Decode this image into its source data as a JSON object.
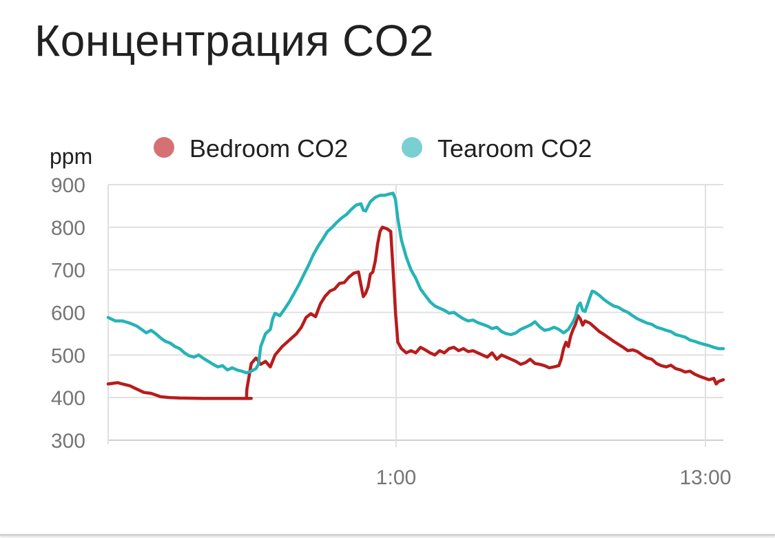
{
  "card": {
    "title": "Концентрация CO2"
  },
  "chart_data": {
    "type": "line",
    "ylabel": "ppm",
    "ylim": [
      300,
      900
    ],
    "yticks": [
      900,
      800,
      700,
      600,
      500,
      400,
      300
    ],
    "xlim": [
      0,
      24.7
    ],
    "xtick_labels": [
      {
        "x": 11.5,
        "label": "1:00"
      },
      {
        "x": 24.0,
        "label": "13:00"
      }
    ],
    "grid": true,
    "legend_position": "top",
    "series": [
      {
        "name": "Bedroom CO2",
        "color": "#b71c1c",
        "legend_color": "#d67173",
        "points": [
          [
            0,
            432
          ],
          [
            0.4,
            435
          ],
          [
            0.6,
            432
          ],
          [
            0.9,
            428
          ],
          [
            1.2,
            420
          ],
          [
            1.5,
            412
          ],
          [
            1.8,
            410
          ],
          [
            2.2,
            402
          ],
          [
            2.6,
            400
          ],
          [
            3.0,
            399
          ],
          [
            4,
            398
          ],
          [
            5,
            398
          ],
          [
            6,
            398
          ],
          [
            5.8,
            398
          ],
          [
            5.82,
            420
          ],
          [
            6.0,
            480
          ],
          [
            6.2,
            493
          ],
          [
            6.4,
            478
          ],
          [
            6.6,
            485
          ],
          [
            6.8,
            472
          ],
          [
            7.0,
            500
          ],
          [
            7.3,
            520
          ],
          [
            7.6,
            535
          ],
          [
            7.9,
            550
          ],
          [
            8.1,
            565
          ],
          [
            8.3,
            588
          ],
          [
            8.5,
            597
          ],
          [
            8.7,
            590
          ],
          [
            8.9,
            620
          ],
          [
            9.1,
            638
          ],
          [
            9.3,
            650
          ],
          [
            9.5,
            655
          ],
          [
            9.7,
            668
          ],
          [
            9.9,
            670
          ],
          [
            10.1,
            683
          ],
          [
            10.3,
            692
          ],
          [
            10.5,
            695
          ],
          [
            10.6,
            665
          ],
          [
            10.7,
            637
          ],
          [
            10.8,
            645
          ],
          [
            10.9,
            660
          ],
          [
            11.0,
            690
          ],
          [
            11.1,
            695
          ],
          [
            11.2,
            720
          ],
          [
            11.3,
            760
          ],
          [
            11.4,
            790
          ],
          [
            11.5,
            800
          ],
          [
            11.7,
            796
          ],
          [
            11.85,
            790
          ],
          [
            11.95,
            700
          ],
          [
            12.05,
            600
          ],
          [
            12.15,
            530
          ],
          [
            12.3,
            515
          ],
          [
            12.5,
            505
          ],
          [
            12.7,
            510
          ],
          [
            12.9,
            505
          ],
          [
            13.1,
            518
          ],
          [
            13.3,
            512
          ],
          [
            13.5,
            505
          ],
          [
            13.7,
            500
          ],
          [
            13.9,
            510
          ],
          [
            14.1,
            505
          ],
          [
            14.3,
            515
          ],
          [
            14.5,
            518
          ],
          [
            14.7,
            510
          ],
          [
            14.9,
            515
          ],
          [
            15.1,
            508
          ],
          [
            15.3,
            510
          ],
          [
            15.5,
            505
          ],
          [
            15.7,
            500
          ],
          [
            15.9,
            495
          ],
          [
            16.1,
            505
          ],
          [
            16.3,
            490
          ],
          [
            16.5,
            500
          ],
          [
            16.7,
            495
          ],
          [
            16.9,
            490
          ],
          [
            17.1,
            485
          ],
          [
            17.3,
            478
          ],
          [
            17.5,
            482
          ],
          [
            17.7,
            490
          ],
          [
            17.9,
            480
          ],
          [
            18.1,
            478
          ],
          [
            18.3,
            475
          ],
          [
            18.5,
            470
          ],
          [
            18.7,
            472
          ],
          [
            18.9,
            475
          ],
          [
            19.0,
            490
          ],
          [
            19.1,
            515
          ],
          [
            19.2,
            530
          ],
          [
            19.3,
            520
          ],
          [
            19.4,
            545
          ],
          [
            19.5,
            560
          ],
          [
            19.6,
            572
          ],
          [
            19.7,
            592
          ],
          [
            19.8,
            585
          ],
          [
            19.9,
            570
          ],
          [
            20.0,
            580
          ],
          [
            20.2,
            575
          ],
          [
            20.4,
            565
          ],
          [
            20.6,
            555
          ],
          [
            20.8,
            548
          ],
          [
            21.0,
            540
          ],
          [
            21.2,
            532
          ],
          [
            21.4,
            525
          ],
          [
            21.6,
            518
          ],
          [
            21.8,
            510
          ],
          [
            22.0,
            512
          ],
          [
            22.2,
            508
          ],
          [
            22.4,
            500
          ],
          [
            22.6,
            493
          ],
          [
            22.8,
            490
          ],
          [
            23.0,
            480
          ],
          [
            23.2,
            475
          ],
          [
            23.4,
            472
          ],
          [
            23.6,
            476
          ],
          [
            23.8,
            468
          ],
          [
            24.0,
            465
          ],
          [
            24.2,
            460
          ],
          [
            24.4,
            462
          ],
          [
            24.6,
            455
          ],
          [
            24.8,
            450
          ],
          [
            25.0,
            446
          ],
          [
            25.2,
            442
          ],
          [
            25.4,
            445
          ],
          [
            25.5,
            432
          ],
          [
            25.6,
            438
          ],
          [
            25.8,
            442
          ]
        ]
      },
      {
        "name": "Tearoom CO2",
        "color": "#26b3b6",
        "legend_color": "#79cfd1",
        "points": [
          [
            0,
            588
          ],
          [
            0.3,
            580
          ],
          [
            0.6,
            580
          ],
          [
            0.9,
            575
          ],
          [
            1.2,
            568
          ],
          [
            1.4,
            560
          ],
          [
            1.6,
            552
          ],
          [
            1.8,
            558
          ],
          [
            2.0,
            550
          ],
          [
            2.2,
            540
          ],
          [
            2.4,
            532
          ],
          [
            2.6,
            528
          ],
          [
            2.8,
            520
          ],
          [
            3.0,
            515
          ],
          [
            3.2,
            505
          ],
          [
            3.4,
            498
          ],
          [
            3.6,
            495
          ],
          [
            3.8,
            500
          ],
          [
            4.0,
            492
          ],
          [
            4.2,
            485
          ],
          [
            4.4,
            478
          ],
          [
            4.6,
            472
          ],
          [
            4.8,
            475
          ],
          [
            5.0,
            465
          ],
          [
            5.2,
            470
          ],
          [
            5.4,
            465
          ],
          [
            5.6,
            462
          ],
          [
            5.8,
            458
          ],
          [
            6.0,
            462
          ],
          [
            6.2,
            468
          ],
          [
            6.3,
            478
          ],
          [
            6.4,
            520
          ],
          [
            6.6,
            550
          ],
          [
            6.8,
            560
          ],
          [
            6.9,
            585
          ],
          [
            7.0,
            598
          ],
          [
            7.2,
            592
          ],
          [
            7.4,
            608
          ],
          [
            7.6,
            625
          ],
          [
            7.8,
            645
          ],
          [
            8.0,
            665
          ],
          [
            8.2,
            688
          ],
          [
            8.4,
            710
          ],
          [
            8.6,
            735
          ],
          [
            8.8,
            755
          ],
          [
            9.0,
            772
          ],
          [
            9.2,
            790
          ],
          [
            9.4,
            800
          ],
          [
            9.6,
            812
          ],
          [
            9.8,
            822
          ],
          [
            10.0,
            830
          ],
          [
            10.2,
            842
          ],
          [
            10.4,
            852
          ],
          [
            10.6,
            855
          ],
          [
            10.7,
            840
          ],
          [
            10.8,
            838
          ],
          [
            10.9,
            850
          ],
          [
            11.0,
            860
          ],
          [
            11.2,
            870
          ],
          [
            11.4,
            875
          ],
          [
            11.6,
            875
          ],
          [
            11.8,
            878
          ],
          [
            11.95,
            880
          ],
          [
            12.05,
            865
          ],
          [
            12.15,
            820
          ],
          [
            12.3,
            770
          ],
          [
            12.5,
            730
          ],
          [
            12.7,
            700
          ],
          [
            12.9,
            680
          ],
          [
            13.1,
            655
          ],
          [
            13.3,
            640
          ],
          [
            13.5,
            625
          ],
          [
            13.7,
            615
          ],
          [
            13.9,
            610
          ],
          [
            14.1,
            605
          ],
          [
            14.3,
            598
          ],
          [
            14.5,
            600
          ],
          [
            14.7,
            592
          ],
          [
            14.9,
            585
          ],
          [
            15.1,
            580
          ],
          [
            15.3,
            582
          ],
          [
            15.5,
            576
          ],
          [
            15.7,
            572
          ],
          [
            15.9,
            568
          ],
          [
            16.1,
            562
          ],
          [
            16.3,
            565
          ],
          [
            16.5,
            555
          ],
          [
            16.7,
            550
          ],
          [
            16.9,
            548
          ],
          [
            17.1,
            552
          ],
          [
            17.3,
            560
          ],
          [
            17.5,
            565
          ],
          [
            17.7,
            570
          ],
          [
            17.9,
            578
          ],
          [
            18.1,
            566
          ],
          [
            18.3,
            558
          ],
          [
            18.5,
            560
          ],
          [
            18.7,
            565
          ],
          [
            18.9,
            560
          ],
          [
            19.1,
            552
          ],
          [
            19.3,
            560
          ],
          [
            19.5,
            578
          ],
          [
            19.6,
            590
          ],
          [
            19.7,
            615
          ],
          [
            19.8,
            622
          ],
          [
            19.9,
            605
          ],
          [
            20.0,
            602
          ],
          [
            20.1,
            618
          ],
          [
            20.2,
            635
          ],
          [
            20.3,
            650
          ],
          [
            20.4,
            648
          ],
          [
            20.6,
            640
          ],
          [
            20.8,
            630
          ],
          [
            21.0,
            622
          ],
          [
            21.2,
            615
          ],
          [
            21.4,
            612
          ],
          [
            21.6,
            605
          ],
          [
            21.8,
            600
          ],
          [
            22.0,
            592
          ],
          [
            22.2,
            585
          ],
          [
            22.4,
            580
          ],
          [
            22.6,
            575
          ],
          [
            22.8,
            572
          ],
          [
            23.0,
            565
          ],
          [
            23.2,
            562
          ],
          [
            23.4,
            558
          ],
          [
            23.6,
            555
          ],
          [
            23.8,
            548
          ],
          [
            24.0,
            545
          ],
          [
            24.2,
            542
          ],
          [
            24.4,
            535
          ],
          [
            24.6,
            532
          ],
          [
            24.8,
            528
          ],
          [
            25.0,
            525
          ],
          [
            25.2,
            522
          ],
          [
            25.4,
            518
          ],
          [
            25.6,
            515
          ],
          [
            25.8,
            515
          ]
        ]
      }
    ]
  }
}
